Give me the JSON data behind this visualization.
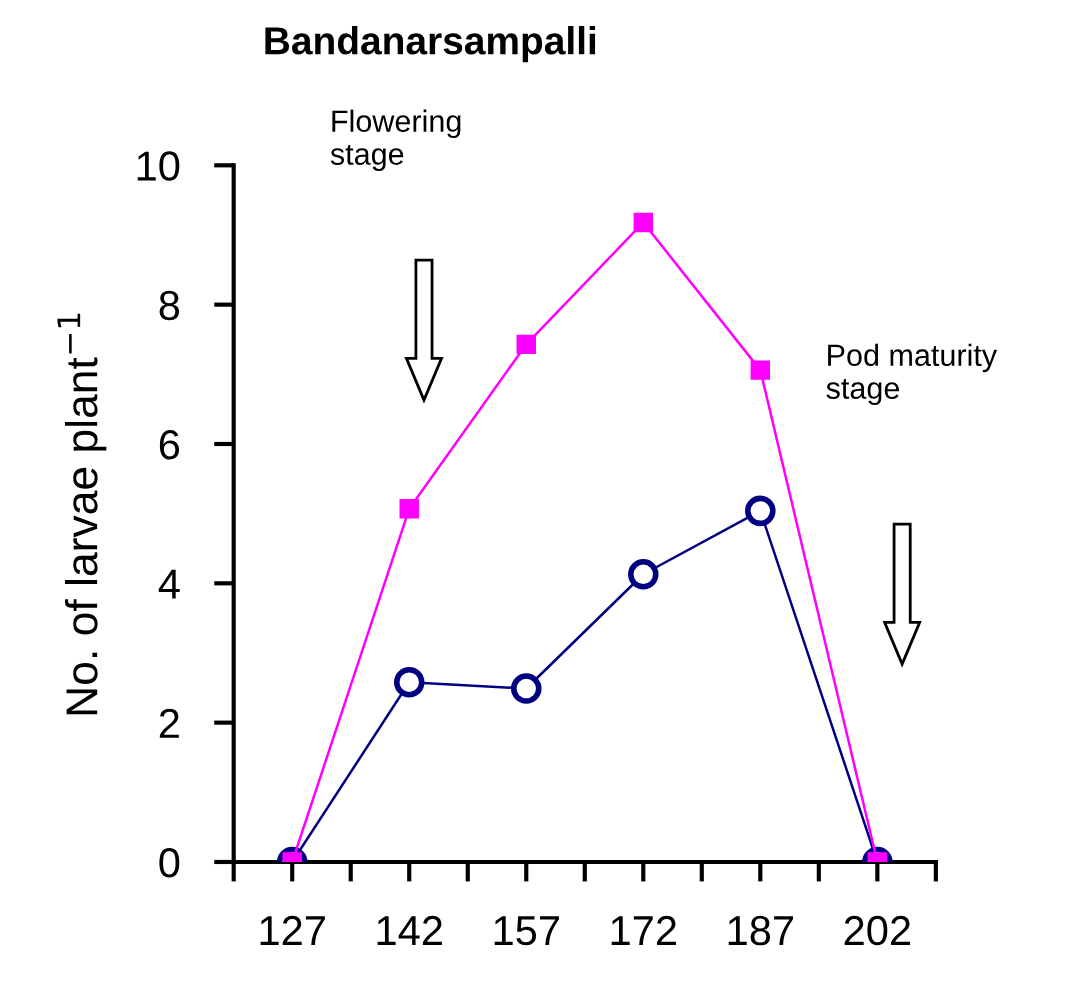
{
  "chart_data": {
    "type": "line",
    "title": "Bandanarsampalli",
    "ylabel": "No. of larvae plant$^{−1}$",
    "x": [
      127,
      142,
      157,
      172,
      187,
      202
    ],
    "series": [
      {
        "color": "#000080",
        "marker": "circle",
        "values": [
          0,
          2.58,
          2.49,
          4.13,
          5.04,
          0
        ]
      },
      {
        "color": "#ff00ff",
        "marker": "square",
        "values": [
          0,
          5.07,
          7.43,
          9.18,
          7.06,
          0
        ]
      }
    ],
    "xlim": [
      119.5,
      209.5
    ],
    "xticks": [
      {
        "value": 119.5,
        "label": null
      },
      127,
      {
        "value": 134.5,
        "label": null
      },
      142,
      {
        "value": 149.5,
        "label": null
      },
      157,
      {
        "value": 164.5,
        "label": null
      },
      172,
      {
        "value": 179.5,
        "label": null
      },
      187,
      {
        "value": 194.5,
        "label": null
      },
      202,
      {
        "value": 209.5,
        "label": null
      }
    ],
    "ylim": [
      0,
      10
    ],
    "yticks": [
      0,
      2,
      4,
      6,
      8,
      10
    ],
    "grid": false,
    "legend": false,
    "annotations": [
      "Flowering\nstage",
      "Pod maturity\nstage"
    ]
  }
}
